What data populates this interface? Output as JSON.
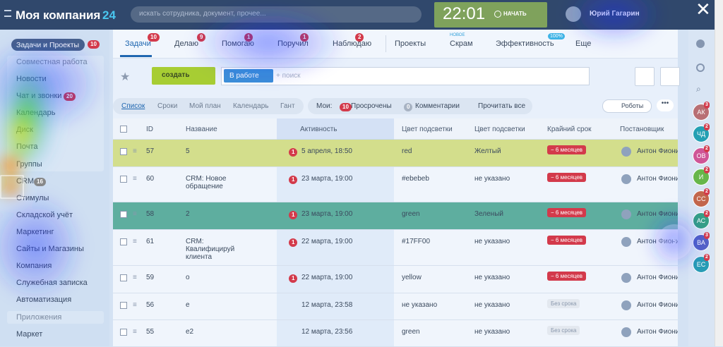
{
  "header": {
    "logo": "Моя компания",
    "logo_number": "24",
    "search_placeholder": "искать сотрудника, документ, прочее...",
    "time": "22:01",
    "start": "НАЧАТЬ",
    "user": "Юрий Гагарин"
  },
  "sidebar": {
    "top": {
      "label": "Задачи и Проекты",
      "counter": 10
    },
    "sections": [
      {
        "title": "Совместная работа",
        "items": [
          {
            "label": "Новости"
          },
          {
            "label": "Чат и звонки",
            "counter": 20
          },
          {
            "label": "Календарь"
          },
          {
            "label": "Диск"
          },
          {
            "label": "Почта"
          },
          {
            "label": "Группы"
          },
          {
            "label": "CRM",
            "counter": 16
          },
          {
            "label": "Стимулы"
          },
          {
            "label": "Складской учёт"
          },
          {
            "label": "Маркетинг"
          },
          {
            "label": "Сайты и Магазины"
          },
          {
            "label": "Компания"
          },
          {
            "label": "Служебная записка"
          },
          {
            "label": "Автоматизация"
          }
        ]
      },
      {
        "title": "Приложения",
        "items": [
          {
            "label": "Маркет"
          }
        ]
      }
    ]
  },
  "tabs": [
    {
      "label": "Задачи",
      "counter": 10
    },
    {
      "label": "Делаю",
      "counter": 9
    },
    {
      "label": "Помогаю",
      "counter": 1
    },
    {
      "label": "Поручил",
      "counter": 1
    },
    {
      "label": "Наблюдаю",
      "counter": 2
    },
    {
      "label": "Проекты"
    },
    {
      "label": "Скрам",
      "badge": "НОВОЕ"
    },
    {
      "label": "Эффективность",
      "badge": "100%"
    },
    {
      "label": "Еще"
    }
  ],
  "toolbar": {
    "create": "создать",
    "filter_tag": "В работе",
    "search_placeholder": "+ поиск"
  },
  "views": [
    "Список",
    "Сроки",
    "Мой план",
    "Календарь",
    "Гант"
  ],
  "my": {
    "label": "Мои:",
    "items": [
      {
        "count": 10,
        "label": "Просрочены"
      },
      {
        "count": 0,
        "label": "Комментарии"
      }
    ],
    "read_all": "Прочитать все"
  },
  "robots": "Роботы",
  "table": {
    "columns": [
      "ID",
      "Название",
      "Активность",
      "Цвет подсветки",
      "Цвет подсветки",
      "Крайний срок",
      "Постановщик"
    ],
    "rows": [
      {
        "id": "57",
        "name": "5",
        "activity_count": 1,
        "activity": "5 апреля, 18:50",
        "color_a": "red",
        "color_b": "Желтый",
        "deadline": "− 6 месяцев",
        "author": "Антон Фионик",
        "background": "#d3de8c"
      },
      {
        "id": "60",
        "name": "CRM: Новое обращение",
        "activity_count": 1,
        "activity": "23 марта, 19:00",
        "color_a": "#ebebeb",
        "color_b": "не указано",
        "deadline": "− 6 месяцев",
        "author": "Антон Фионик"
      },
      {
        "id": "58",
        "name": "2",
        "activity_count": 1,
        "activity": "23 марта, 19:00",
        "color_a": "green",
        "color_b": "Зеленый",
        "deadline": "− 6 месяцев",
        "author": "Антон Фионик",
        "background": "#5eae9f"
      },
      {
        "id": "61",
        "name": "CRM: Квалифицируй клиента",
        "activity_count": 1,
        "activity": "22 марта, 19:00",
        "color_a": "#17FF00",
        "color_b": "не указано",
        "deadline": "− 6 месяцев",
        "author": "Антон Фионик"
      },
      {
        "id": "59",
        "name": "о",
        "activity_count": 1,
        "activity": "22 марта, 19:00",
        "color_a": "yellow",
        "color_b": "не указано",
        "deadline": "− 6 месяцев",
        "author": "Антон Фионик"
      },
      {
        "id": "56",
        "name": "е",
        "activity": "12 марта, 23:58",
        "color_a": "не указано",
        "color_b": "не указано",
        "deadline": "Без срока",
        "author": "Антон Фионик"
      },
      {
        "id": "55",
        "name": "е2",
        "activity": "12 марта, 23:56",
        "color_a": "green",
        "color_b": "не указано",
        "deadline": "Без срока",
        "author": "Антон Фионик"
      }
    ]
  },
  "right_bar": {
    "avatars": [
      {
        "initials": "АК",
        "counter": 3,
        "color": "#b86f74"
      },
      {
        "initials": "ЧД",
        "counter": 2,
        "color": "#24a0b3"
      },
      {
        "initials": "ОВ",
        "counter": 2,
        "color": "#cf5596"
      },
      {
        "initials": "И",
        "counter": 2,
        "color": "#67b64a"
      },
      {
        "initials": "СС",
        "counter": 2,
        "color": "#c2664c"
      },
      {
        "initials": "АС",
        "counter": 2,
        "color": "#35a086"
      },
      {
        "initials": "ВА",
        "counter": 3,
        "color": "#5562c6"
      },
      {
        "initials": "ЕС",
        "counter": 2,
        "color": "#289cb5"
      }
    ]
  }
}
